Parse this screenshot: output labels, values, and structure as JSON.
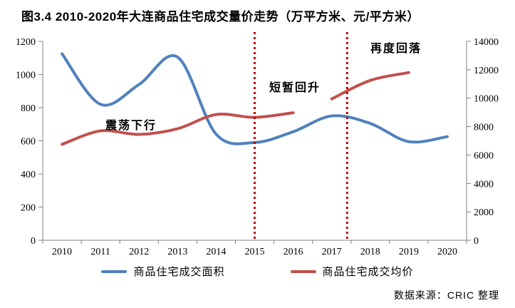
{
  "title": "图3.4  2010-2020年大连商品住宅成交量价走势（万平方米、元/平方米）",
  "source_note": "数据来源：CRIC 整理",
  "colors": {
    "area_series": "#4F81BD",
    "price_series": "#C0504D",
    "divider": "#C00000",
    "axis": "#808080",
    "text": "#000000"
  },
  "chart_data": {
    "type": "line",
    "title": "图3.4  2010-2020年大连商品住宅成交量价走势（万平方米、元/平方米）",
    "categories": [
      2010,
      2011,
      2012,
      2013,
      2014,
      2015,
      2016,
      2017,
      2018,
      2019,
      2020
    ],
    "series": [
      {
        "name": "商品住宅成交面积",
        "axis": "left",
        "color": "#4F81BD",
        "x": [
          2010,
          2011,
          2012,
          2013,
          2014,
          2015,
          2016,
          2017,
          2018,
          2019,
          2020
        ],
        "values": [
          1125,
          820,
          940,
          1105,
          640,
          590,
          655,
          750,
          705,
          595,
          625
        ]
      },
      {
        "name": "商品住宅成交均价",
        "axis": "right",
        "color": "#C0504D",
        "segments": [
          {
            "x": [
              2010,
              2011,
              2012,
              2013,
              2014,
              2015,
              2016
            ],
            "values": [
              6750,
              7700,
              7450,
              7850,
              8850,
              8650,
              8975
            ]
          },
          {
            "x": [
              2017,
              2018,
              2019
            ],
            "values": [
              9950,
              11250,
              11800
            ]
          }
        ]
      }
    ],
    "y_left": {
      "min": 0,
      "max": 1200,
      "step": 200,
      "tick_labels": [
        "0",
        "200",
        "400",
        "600",
        "800",
        "1000",
        "1200"
      ]
    },
    "y_right": {
      "min": 0,
      "max": 14000,
      "step": 2000,
      "tick_labels": [
        "0",
        "2000",
        "4000",
        "6000",
        "8000",
        "10000",
        "12000",
        "14000"
      ]
    },
    "legend_position": "bottom",
    "grid": false,
    "annotations": [
      {
        "text": "震荡下行"
      },
      {
        "text": "短暂回升"
      },
      {
        "text": "再度回落"
      }
    ],
    "phase_divider_years": [
      2015,
      2017.4
    ]
  }
}
